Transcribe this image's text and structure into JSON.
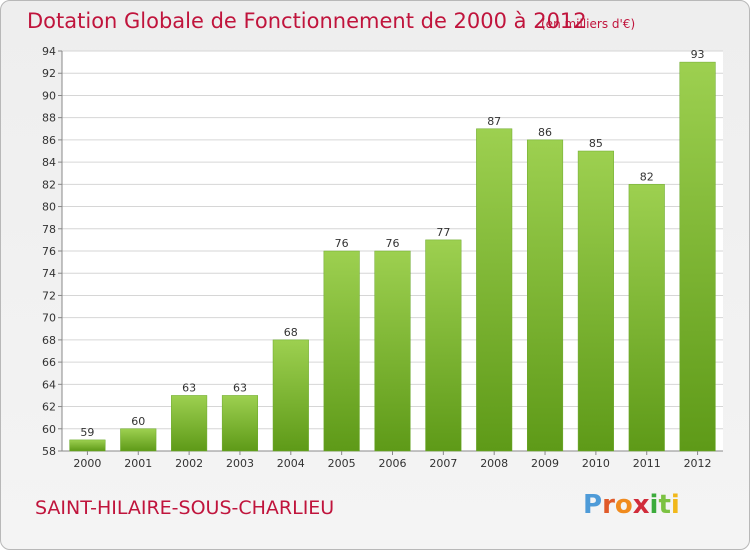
{
  "header": {
    "title": "Dotation Globale de Fonctionnement de 2000 à 2012",
    "subtitle": "(en milliers d'€)"
  },
  "footer": {
    "commune": "SAINT-HILAIRE-SOUS-CHARLIEU",
    "logo_letters": [
      "P",
      "r",
      "o",
      "x",
      "i",
      "t",
      "i"
    ]
  },
  "colors": {
    "title": "#c0143c",
    "bar_top": "#9dd050",
    "bar_bottom": "#5e9a18",
    "grid": "#d6d6d6",
    "axis_text": "#333333"
  },
  "chart_data": {
    "type": "bar",
    "title": "Dotation Globale de Fonctionnement de 2000 à 2012",
    "subtitle": "(en milliers d'€)",
    "xlabel": "",
    "ylabel": "",
    "categories": [
      "2000",
      "2001",
      "2002",
      "2003",
      "2004",
      "2005",
      "2006",
      "2007",
      "2008",
      "2009",
      "2010",
      "2011",
      "2012"
    ],
    "values": [
      59,
      60,
      63,
      63,
      68,
      76,
      76,
      77,
      87,
      86,
      85,
      82,
      93
    ],
    "ylim": [
      58,
      94
    ],
    "yticks": [
      58,
      60,
      62,
      64,
      66,
      68,
      70,
      72,
      74,
      76,
      78,
      80,
      82,
      84,
      86,
      88,
      90,
      92,
      94
    ],
    "grid": true,
    "data_labels": true
  }
}
